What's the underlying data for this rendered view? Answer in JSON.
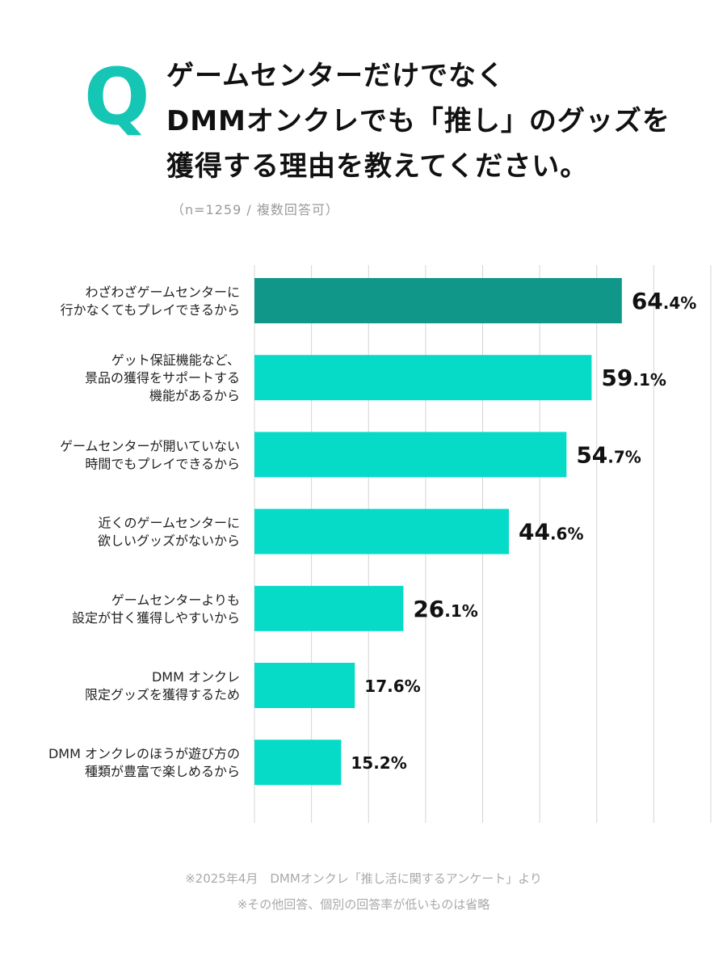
{
  "header": {
    "q_letter": "Q",
    "question_lines": [
      "ゲームセンターだけでなく",
      "DMMオンクレでも「推し」のグッズを",
      "獲得する理由を教えてください。"
    ],
    "sample_note": "（n=1259 / 複数回答可）"
  },
  "colors": {
    "accent_dark": "#11968a",
    "accent": "#06dbc8",
    "q_mark": "#15c6b5",
    "grid": "#d4d4d4"
  },
  "chart_data": {
    "type": "bar",
    "orientation": "horizontal",
    "categories": [
      [
        "わざわざゲームセンターに",
        "行かなくてもプレイできるから"
      ],
      [
        "ゲット保証機能など、",
        "景品の獲得をサポートする",
        "機能があるから"
      ],
      [
        "ゲームセンターが開いていない",
        "時間でもプレイできるから"
      ],
      [
        "近くのゲームセンターに",
        "欲しいグッズがないから"
      ],
      [
        "ゲームセンターよりも",
        "設定が甘く獲得しやすいから"
      ],
      [
        "DMM オンクレ",
        "限定グッズを獲得するため"
      ],
      [
        "DMM オンクレのほうが遊び方の",
        "種類が豊富で楽しめるから"
      ]
    ],
    "values": [
      64.4,
      59.1,
      54.7,
      44.6,
      26.1,
      17.6,
      15.2
    ],
    "unit": "%",
    "xlim": [
      0,
      80
    ],
    "grid": true,
    "highlight_index": 0
  },
  "footer": {
    "source": "※2025年4月　DMMオンクレ「推し活に関するアンケート」より",
    "note": "※その他回答、個別の回答率が低いものは省略"
  }
}
